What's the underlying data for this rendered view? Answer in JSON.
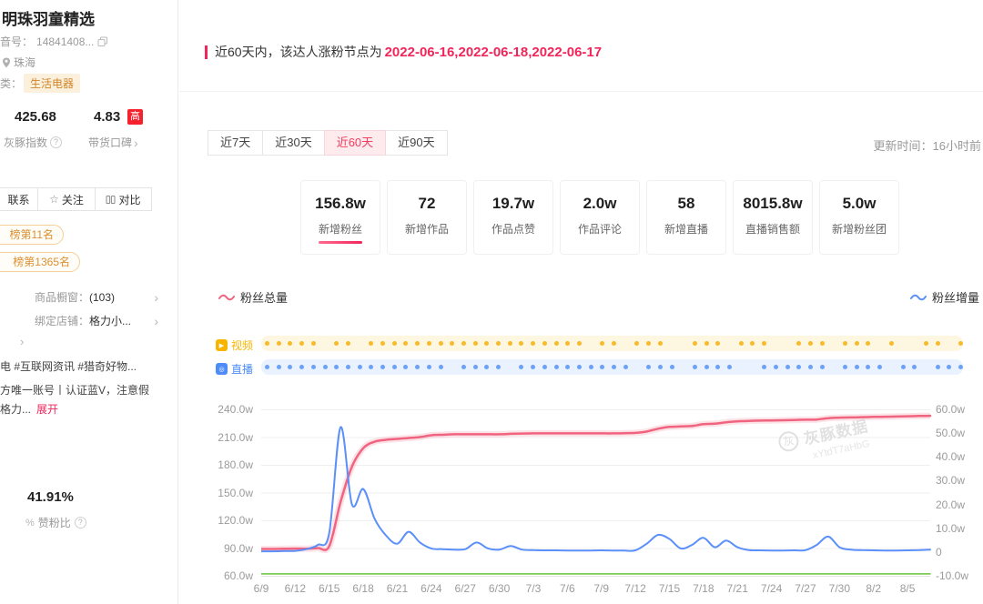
{
  "colors": {
    "accent_red": "#f0265a",
    "tab_active_bg": "#fdebee",
    "pink_line": "#f0647f",
    "blue_line": "#5b8ff9",
    "green_line": "#67c23a",
    "orange_dot": "#f7ba2a",
    "badge_red": "#f5222d",
    "rank_pill_orange": "#dc8f2f"
  },
  "sidebar": {
    "title": "明珠羽童精选",
    "id_label": "音号：",
    "id_value": "14841408...",
    "location": "珠海",
    "category_label": "类：",
    "category_badge": "生活电器",
    "index_value": "425.68",
    "index_label": "灰豚指数",
    "reputation_value": "4.83",
    "reputation_badge": "高",
    "reputation_label": "带货口碑",
    "actions": {
      "contact": "联系",
      "follow": "关注",
      "compare": "对比"
    },
    "rank_badges": [
      "榜第11名",
      "榜第1365名"
    ],
    "shop_label": "商品橱窗：",
    "shop_value": "(103)",
    "store_label": "绑定店铺：",
    "store_value": "格力小...",
    "tags_line": "电 #互联网资讯 #猎奇好物...",
    "bio_line1": "方唯一账号丨认证蓝V，注意假",
    "bio_line2": "格力...",
    "expand_label": "展开",
    "ratio_value": "41.91%",
    "ratio_label": "赞粉比"
  },
  "main": {
    "notice_prefix": "近60天内，该达人涨粉节点为",
    "notice_dates": "2022-06-16,2022-06-18,2022-06-17",
    "tabs": [
      {
        "label": "近7天",
        "active": false
      },
      {
        "label": "近30天",
        "active": false
      },
      {
        "label": "近60天",
        "active": true
      },
      {
        "label": "近90天",
        "active": false
      }
    ],
    "updated": "更新时间：16小时前",
    "stat_cards": [
      {
        "value": "156.8w",
        "label": "新增粉丝",
        "selected": true
      },
      {
        "value": "72",
        "label": "新增作品",
        "selected": false
      },
      {
        "value": "19.7w",
        "label": "作品点赞",
        "selected": false
      },
      {
        "value": "2.0w",
        "label": "作品评论",
        "selected": false
      },
      {
        "value": "58",
        "label": "新增直播",
        "selected": false
      },
      {
        "value": "8015.8w",
        "label": "直播销售额",
        "selected": false
      },
      {
        "value": "5.0w",
        "label": "新增粉丝团",
        "selected": false
      }
    ],
    "legend_left": "粉丝总量",
    "legend_right": "粉丝增量",
    "marker_rows": [
      {
        "label": "视频",
        "text_color": "#f7b500",
        "dot_color": "#f7ba2a",
        "strip_bg": "#fdf6e1",
        "pattern": [
          1,
          1,
          1,
          1,
          1,
          0,
          1,
          1,
          0,
          1,
          1,
          1,
          1,
          1,
          1,
          1,
          1,
          1,
          1,
          1,
          1,
          1,
          1,
          1,
          1,
          1,
          1,
          1,
          0,
          1,
          1,
          0,
          1,
          1,
          1,
          0,
          0,
          1,
          1,
          1,
          0,
          1,
          1,
          1,
          0,
          0,
          1,
          1,
          1,
          0,
          1,
          1,
          1,
          0,
          1,
          0,
          0,
          1,
          1,
          0,
          1
        ]
      },
      {
        "label": "直播",
        "text_color": "#4e8df7",
        "dot_color": "#6ba1f7",
        "strip_bg": "#e9f2fe",
        "pattern": [
          1,
          1,
          1,
          1,
          1,
          1,
          1,
          1,
          1,
          1,
          1,
          1,
          1,
          1,
          1,
          1,
          0,
          1,
          1,
          1,
          1,
          0,
          1,
          1,
          1,
          1,
          1,
          1,
          1,
          1,
          1,
          1,
          0,
          1,
          1,
          1,
          0,
          1,
          1,
          1,
          1,
          0,
          0,
          1,
          1,
          1,
          1,
          1,
          1,
          0,
          1,
          1,
          1,
          1,
          0,
          1,
          1,
          0,
          1,
          1,
          1
        ]
      }
    ],
    "watermark_brand": "灰豚数据",
    "watermark_code": "xYtdT7aHbG"
  },
  "chart_data": {
    "type": "line",
    "x_start": "6/9",
    "x_days": 60,
    "x_tick_labels": [
      "6/9",
      "6/12",
      "6/15",
      "6/18",
      "6/21",
      "6/24",
      "6/27",
      "6/30",
      "7/3",
      "7/6",
      "7/9",
      "7/12",
      "7/15",
      "7/18",
      "7/21",
      "7/24",
      "7/27",
      "7/30",
      "8/2",
      "8/5"
    ],
    "x_tick_step_days": 3,
    "grid": true,
    "left_axis": {
      "max": 240,
      "min": 60,
      "unit": "w",
      "ticks": [
        "240.0w",
        "210.0w",
        "180.0w",
        "150.0w",
        "120.0w",
        "90.0w",
        "60.0w"
      ]
    },
    "right_axis": {
      "max": 60,
      "min": -10,
      "unit": "w",
      "ticks": [
        "60.0w",
        "50.0w",
        "40.0w",
        "30.0w",
        "20.0w",
        "10.0w",
        "0",
        "-10.0w"
      ]
    },
    "series": [
      {
        "name": "粉丝总量",
        "axis": "left",
        "color": "#f0647f",
        "values": [
          89,
          89,
          89.2,
          89.4,
          89.3,
          90,
          92,
          140,
          178,
          198,
          205,
          207,
          208,
          209,
          210,
          212,
          212.5,
          213,
          213,
          213,
          213,
          213,
          213.5,
          213.8,
          214,
          214,
          214,
          214,
          214,
          214,
          214,
          214,
          214.2,
          214.5,
          216,
          219,
          221,
          221.5,
          222,
          224,
          224.5,
          226,
          227,
          227.5,
          227.8,
          228,
          228.2,
          228.5,
          228.8,
          229,
          230.5,
          231,
          231.2,
          231.5,
          231.8,
          232,
          232.2,
          232.5,
          232.8,
          233
        ]
      },
      {
        "name": "粉丝增量",
        "axis": "right",
        "color": "#5b8ff9",
        "values": [
          0.3,
          0.3,
          0.4,
          0.5,
          1.2,
          3,
          8,
          52.5,
          20,
          26.5,
          14,
          7,
          3.5,
          8.5,
          4,
          1.5,
          1.2,
          1,
          1.2,
          4,
          1.5,
          1,
          2.5,
          1,
          0.8,
          0.7,
          0.7,
          0.6,
          0.6,
          0.6,
          0.7,
          0.6,
          0.6,
          0.7,
          3.5,
          7.2,
          5.5,
          1.5,
          3,
          6,
          2,
          4.8,
          2,
          0.8,
          0.7,
          0.6,
          0.6,
          0.7,
          0.8,
          3,
          6.5,
          2,
          1,
          0.8,
          0.7,
          0.6,
          0.6,
          0.7,
          0.8,
          1
        ]
      },
      {
        "name": "绿色基线",
        "axis": "right",
        "color": "#67c23a",
        "constant": -9.2
      }
    ]
  }
}
